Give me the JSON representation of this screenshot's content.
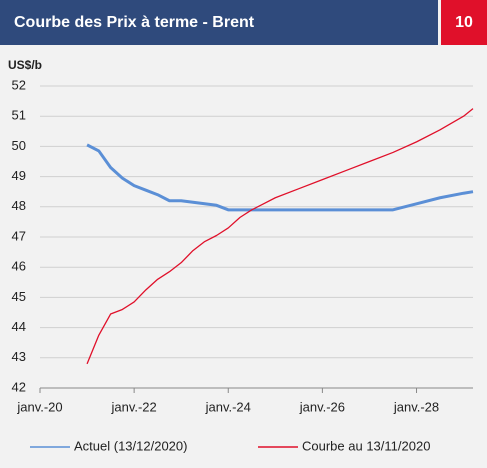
{
  "chart_data": {
    "type": "line",
    "title": "Courbe des Prix à terme - Brent",
    "page_number": "10",
    "y_label": "US$/b",
    "x": [
      2021.0,
      2021.25,
      2021.5,
      2021.75,
      2022.0,
      2022.25,
      2022.5,
      2022.75,
      2023.0,
      2023.25,
      2023.5,
      2023.75,
      2024.0,
      2024.25,
      2024.5,
      2024.75,
      2025.0,
      2025.5,
      2026.0,
      2026.5,
      2027.0,
      2027.5,
      2028.0,
      2028.5,
      2029.0,
      2029.2
    ],
    "series": [
      {
        "name": "Actuel (13/12/2020)",
        "color": "#5b8fd6",
        "values": [
          50.05,
          49.85,
          49.3,
          48.95,
          48.7,
          48.55,
          48.4,
          48.2,
          48.2,
          48.15,
          48.1,
          48.05,
          47.9,
          47.9,
          47.9,
          47.9,
          47.9,
          47.9,
          47.9,
          47.9,
          47.9,
          47.9,
          48.1,
          48.3,
          48.45,
          48.5
        ]
      },
      {
        "name": "Courbe au 13/11/2020",
        "color": "#e0102a",
        "values": [
          42.8,
          43.75,
          44.45,
          44.6,
          44.85,
          45.25,
          45.6,
          45.85,
          46.15,
          46.55,
          46.85,
          47.05,
          47.3,
          47.65,
          47.9,
          48.1,
          48.3,
          48.6,
          48.9,
          49.2,
          49.5,
          49.8,
          50.15,
          50.55,
          51.0,
          51.25
        ]
      }
    ],
    "xlim": [
      2020,
      2029.2
    ],
    "xticks": [
      {
        "value": 2020,
        "label": "janv.-20"
      },
      {
        "value": 2022,
        "label": "janv.-22"
      },
      {
        "value": 2024,
        "label": "janv.-24"
      },
      {
        "value": 2026,
        "label": "janv.-26"
      },
      {
        "value": 2028,
        "label": "janv.-28"
      }
    ],
    "ylim": [
      42,
      52
    ],
    "yticks": [
      42,
      43,
      44,
      45,
      46,
      47,
      48,
      49,
      50,
      51,
      52
    ],
    "grid": true
  }
}
